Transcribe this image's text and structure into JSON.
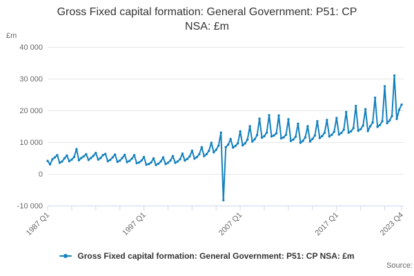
{
  "header": {
    "title": "Gross Fixed capital formation: General Government: P51: CP NSA: £m",
    "y_axis_unit_label": "£m"
  },
  "legend": {
    "label": "Gross Fixed capital formation: General Government: P51: CP NSA: £m"
  },
  "source_label": "Source:",
  "colors": {
    "series_line": "#1380be",
    "gridline": "#e6e6e6",
    "axis_line": "#ccd6eb",
    "tick_label": "#666666"
  },
  "chart_data": {
    "type": "line",
    "title": "Gross Fixed capital formation: General Government: P51: CP NSA: £m",
    "ylabel": "£m",
    "frequency": "quarterly",
    "start_period": "1987 Q1",
    "end_period": "2023 Q4",
    "ylim": [
      -10000,
      40000
    ],
    "grid": true,
    "legend_position": "bottom",
    "y_ticks": [
      {
        "value": 40000,
        "label": "40 000"
      },
      {
        "value": 30000,
        "label": "30 000"
      },
      {
        "value": 20000,
        "label": "20 000"
      },
      {
        "value": 10000,
        "label": "10 000"
      },
      {
        "value": 0,
        "label": "0"
      },
      {
        "value": -10000,
        "label": "-10 000"
      }
    ],
    "x_major_ticks": [
      {
        "index": 0,
        "label": "1987 Q1"
      },
      {
        "index": 40,
        "label": "1997 Q1"
      },
      {
        "index": 80,
        "label": "2007 Q1"
      },
      {
        "index": 120,
        "label": "2017 Q1"
      },
      {
        "index": 147,
        "label": "2023 Q4"
      }
    ],
    "x_minor_tick_interval": 10,
    "series": [
      {
        "name": "Gross Fixed capital formation: General Government: P51: CP NSA: £m",
        "color": "#1380be",
        "values": [
          4100,
          3000,
          4600,
          5200,
          5900,
          3500,
          3900,
          4900,
          5800,
          4000,
          4500,
          5300,
          7800,
          4300,
          5000,
          5500,
          6200,
          4400,
          5000,
          5700,
          6600,
          4500,
          5000,
          5900,
          6300,
          4000,
          4400,
          5200,
          6100,
          3800,
          4200,
          5000,
          6000,
          3700,
          4100,
          4800,
          5900,
          3400,
          3600,
          4200,
          5300,
          2900,
          3100,
          3600,
          4900,
          2800,
          3200,
          3900,
          5200,
          3100,
          3500,
          4200,
          5600,
          3500,
          3900,
          4600,
          6400,
          4200,
          4700,
          5500,
          7300,
          4800,
          5300,
          6200,
          8400,
          5600,
          6200,
          7300,
          9800,
          6800,
          7600,
          8900,
          13000,
          -8300,
          8400,
          9200,
          11000,
          8300,
          8800,
          9600,
          13400,
          9000,
          9600,
          10800,
          15000,
          10200,
          10900,
          12200,
          17400,
          11400,
          11900,
          13000,
          18500,
          11800,
          12100,
          12800,
          18400,
          11200,
          11500,
          12300,
          17200,
          10400,
          10800,
          11700,
          15800,
          9800,
          10400,
          11500,
          15000,
          10200,
          11000,
          12100,
          16600,
          11300,
          11900,
          12900,
          17000,
          11800,
          12300,
          13300,
          17600,
          12400,
          12900,
          13900,
          19500,
          13000,
          13400,
          14400,
          21400,
          13600,
          14100,
          15200,
          20400,
          13500,
          15000,
          16200,
          24000,
          14800,
          15400,
          16600,
          27600,
          16000,
          16800,
          18200,
          31000,
          17300,
          20200,
          21800
        ]
      }
    ]
  }
}
